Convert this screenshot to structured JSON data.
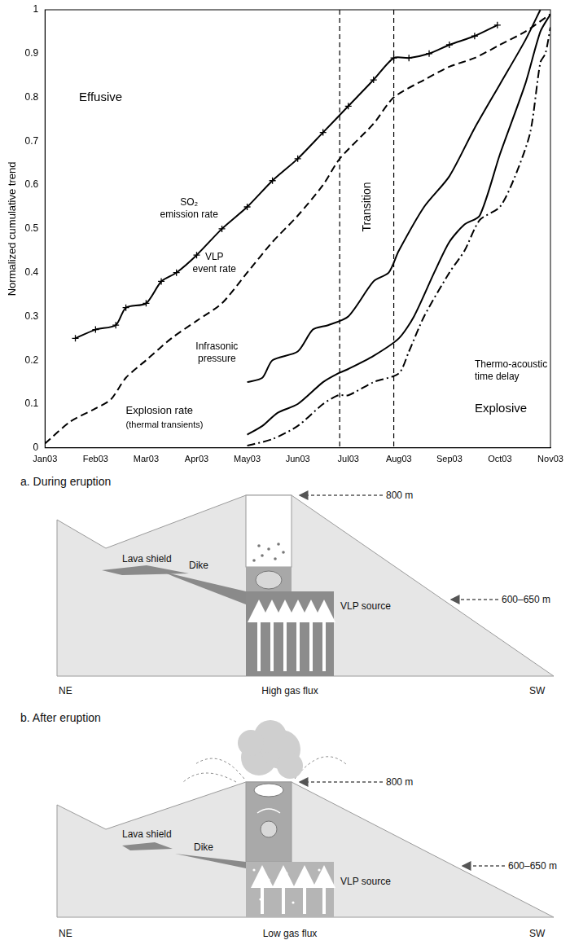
{
  "chart_data": {
    "type": "line",
    "y_label": "Normalized cumulative trend",
    "xlim": [
      0,
      10
    ],
    "xticks": [
      {
        "value": 0,
        "label": "Jan03"
      },
      {
        "value": 1,
        "label": "Feb03"
      },
      {
        "value": 2,
        "label": "Mar03"
      },
      {
        "value": 3,
        "label": "Apr03"
      },
      {
        "value": 4,
        "label": "May03"
      },
      {
        "value": 5,
        "label": "Jun03"
      },
      {
        "value": 6,
        "label": "Jul03"
      },
      {
        "value": 7,
        "label": "Aug03"
      },
      {
        "value": 8,
        "label": "Sep03"
      },
      {
        "value": 9,
        "label": "Oct03"
      },
      {
        "value": 10,
        "label": "Nov03"
      }
    ],
    "ylim": [
      0,
      1
    ],
    "yticks": [
      0,
      0.1,
      0.2,
      0.3,
      0.4,
      0.5,
      0.6,
      0.7,
      0.8,
      0.9,
      1
    ],
    "grid": false,
    "series": [
      {
        "name": "SO₂ emission rate",
        "color": "#000000",
        "line_style": "solid",
        "marker": "cross",
        "x": [
          0.6,
          1.0,
          1.4,
          1.6,
          2.0,
          2.3,
          2.6,
          3.0,
          3.5,
          4.0,
          4.5,
          5.0,
          5.5,
          6.0,
          6.5,
          6.9,
          7.2,
          7.6,
          8.0,
          8.5,
          8.95
        ],
        "values": [
          0.25,
          0.27,
          0.28,
          0.32,
          0.33,
          0.38,
          0.4,
          0.44,
          0.5,
          0.55,
          0.61,
          0.66,
          0.72,
          0.78,
          0.84,
          0.89,
          0.89,
          0.9,
          0.92,
          0.94,
          0.965
        ]
      },
      {
        "name": "VLP event rate",
        "color": "#000000",
        "line_style": "dashed",
        "marker": "none",
        "x": [
          0,
          0.5,
          1.0,
          1.3,
          1.6,
          2.0,
          2.5,
          3.0,
          3.5,
          4.0,
          4.5,
          5.0,
          5.5,
          5.83,
          6.5,
          6.9,
          7.5,
          8.0,
          8.5,
          9.0,
          9.5,
          10.0
        ],
        "values": [
          0.01,
          0.06,
          0.09,
          0.11,
          0.16,
          0.2,
          0.25,
          0.29,
          0.33,
          0.4,
          0.47,
          0.53,
          0.6,
          0.66,
          0.74,
          0.8,
          0.84,
          0.87,
          0.89,
          0.92,
          0.95,
          0.99
        ]
      },
      {
        "name": "Infrasonic pressure",
        "color": "#000000",
        "line_style": "solid",
        "marker": "none",
        "x": [
          4.0,
          4.3,
          4.5,
          5.0,
          5.3,
          5.6,
          6.0,
          6.5,
          6.8,
          7.0,
          7.5,
          8.0,
          8.5,
          9.0,
          9.5,
          9.8
        ],
        "values": [
          0.15,
          0.16,
          0.2,
          0.22,
          0.27,
          0.28,
          0.3,
          0.38,
          0.4,
          0.45,
          0.55,
          0.62,
          0.73,
          0.83,
          0.93,
          1.0
        ]
      },
      {
        "name": "Explosion rate",
        "color": "#000000",
        "line_style": "solid",
        "marker": "none",
        "x": [
          4.0,
          4.3,
          4.6,
          5.0,
          5.5,
          5.8,
          6.0,
          6.5,
          7.0,
          7.3,
          7.7,
          8.0,
          8.3,
          8.6,
          9.0,
          9.5,
          9.8,
          10.0
        ],
        "values": [
          0.03,
          0.05,
          0.08,
          0.1,
          0.15,
          0.17,
          0.18,
          0.21,
          0.25,
          0.3,
          0.4,
          0.47,
          0.51,
          0.53,
          0.67,
          0.83,
          0.95,
          0.99
        ]
      },
      {
        "name": "Thermo-acoustic time delay",
        "color": "#000000",
        "line_style": "dashdot",
        "marker": "none",
        "x": [
          4.0,
          4.5,
          5.0,
          5.5,
          5.8,
          6.0,
          6.5,
          7.0,
          7.2,
          7.5,
          8.0,
          8.3,
          8.6,
          9.0,
          9.3,
          9.6,
          9.8,
          9.9,
          10.0
        ],
        "values": [
          0.005,
          0.02,
          0.05,
          0.1,
          0.12,
          0.12,
          0.15,
          0.17,
          0.22,
          0.3,
          0.4,
          0.45,
          0.52,
          0.55,
          0.62,
          0.72,
          0.88,
          0.9,
          0.96
        ]
      }
    ],
    "reference_lines_x": [
      5.83,
      6.9
    ],
    "annotations": [
      "Effusive",
      "Transition",
      "Explosive",
      "SO₂ emission rate",
      "VLP event rate",
      "Infrasonic pressure",
      "Explosion rate",
      "(thermal transients)",
      "Thermo-acoustic time delay"
    ]
  },
  "diagrams": [
    {
      "title": "a. During eruption",
      "elevation_top": "800 m",
      "elevation_source": "600–650 m",
      "lava_shield": "Lava shield",
      "dike": "Dike",
      "vlp_source": "VLP source",
      "left": "NE",
      "right": "SW",
      "gas_flux": "High gas flux"
    },
    {
      "title": "b. After eruption",
      "elevation_top": "800 m",
      "elevation_source": "600–650 m",
      "lava_shield": "Lava shield",
      "dike": "Dike",
      "vlp_source": "VLP source",
      "left": "NE",
      "right": "SW",
      "gas_flux": "Low gas flux"
    }
  ]
}
